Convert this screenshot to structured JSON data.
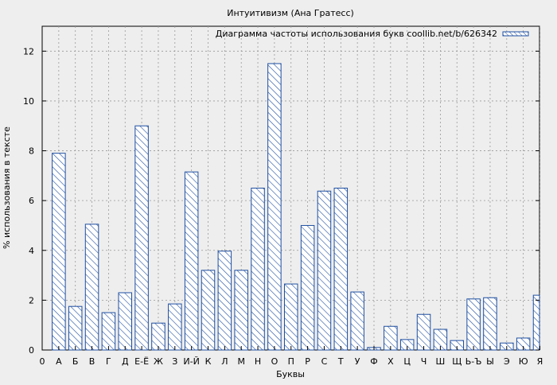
{
  "chart_data": {
    "type": "bar",
    "title": "Интуитивизм (Ана Гратесс)",
    "legend": {
      "label": "Диаграмма частоты использования букв coollib.net/b/626342",
      "placement": "top-right"
    },
    "xlabel": "Буквы",
    "ylabel": "% использования в тексте",
    "x_axis_zero_label": "0",
    "ylim": [
      0,
      13
    ],
    "y_ticks": [
      0,
      2,
      4,
      6,
      8,
      10,
      12
    ],
    "grid": true,
    "categories": [
      "А",
      "Б",
      "В",
      "Г",
      "Д",
      "Е-Ё",
      "Ж",
      "З",
      "И-Й",
      "К",
      "Л",
      "М",
      "Н",
      "О",
      "П",
      "Р",
      "С",
      "Т",
      "У",
      "Ф",
      "Х",
      "Ц",
      "Ч",
      "Ш",
      "Щ",
      "Ь-Ъ",
      "Ы",
      "Э",
      "Ю",
      "Я"
    ],
    "values": [
      7.9,
      1.75,
      5.05,
      1.5,
      2.3,
      9.0,
      1.08,
      1.85,
      7.15,
      3.2,
      3.97,
      3.2,
      6.5,
      11.5,
      2.65,
      5.0,
      6.38,
      6.5,
      2.33,
      0.1,
      0.95,
      0.42,
      1.43,
      0.83,
      0.38,
      2.05,
      2.1,
      0.28,
      0.48,
      2.2
    ]
  },
  "colors": {
    "background": "#eeeeee",
    "plot_background": "#eeeeee",
    "bar_stroke": "#1f4fa0",
    "bar_fill": "#ffffff",
    "grid": "#999999"
  }
}
